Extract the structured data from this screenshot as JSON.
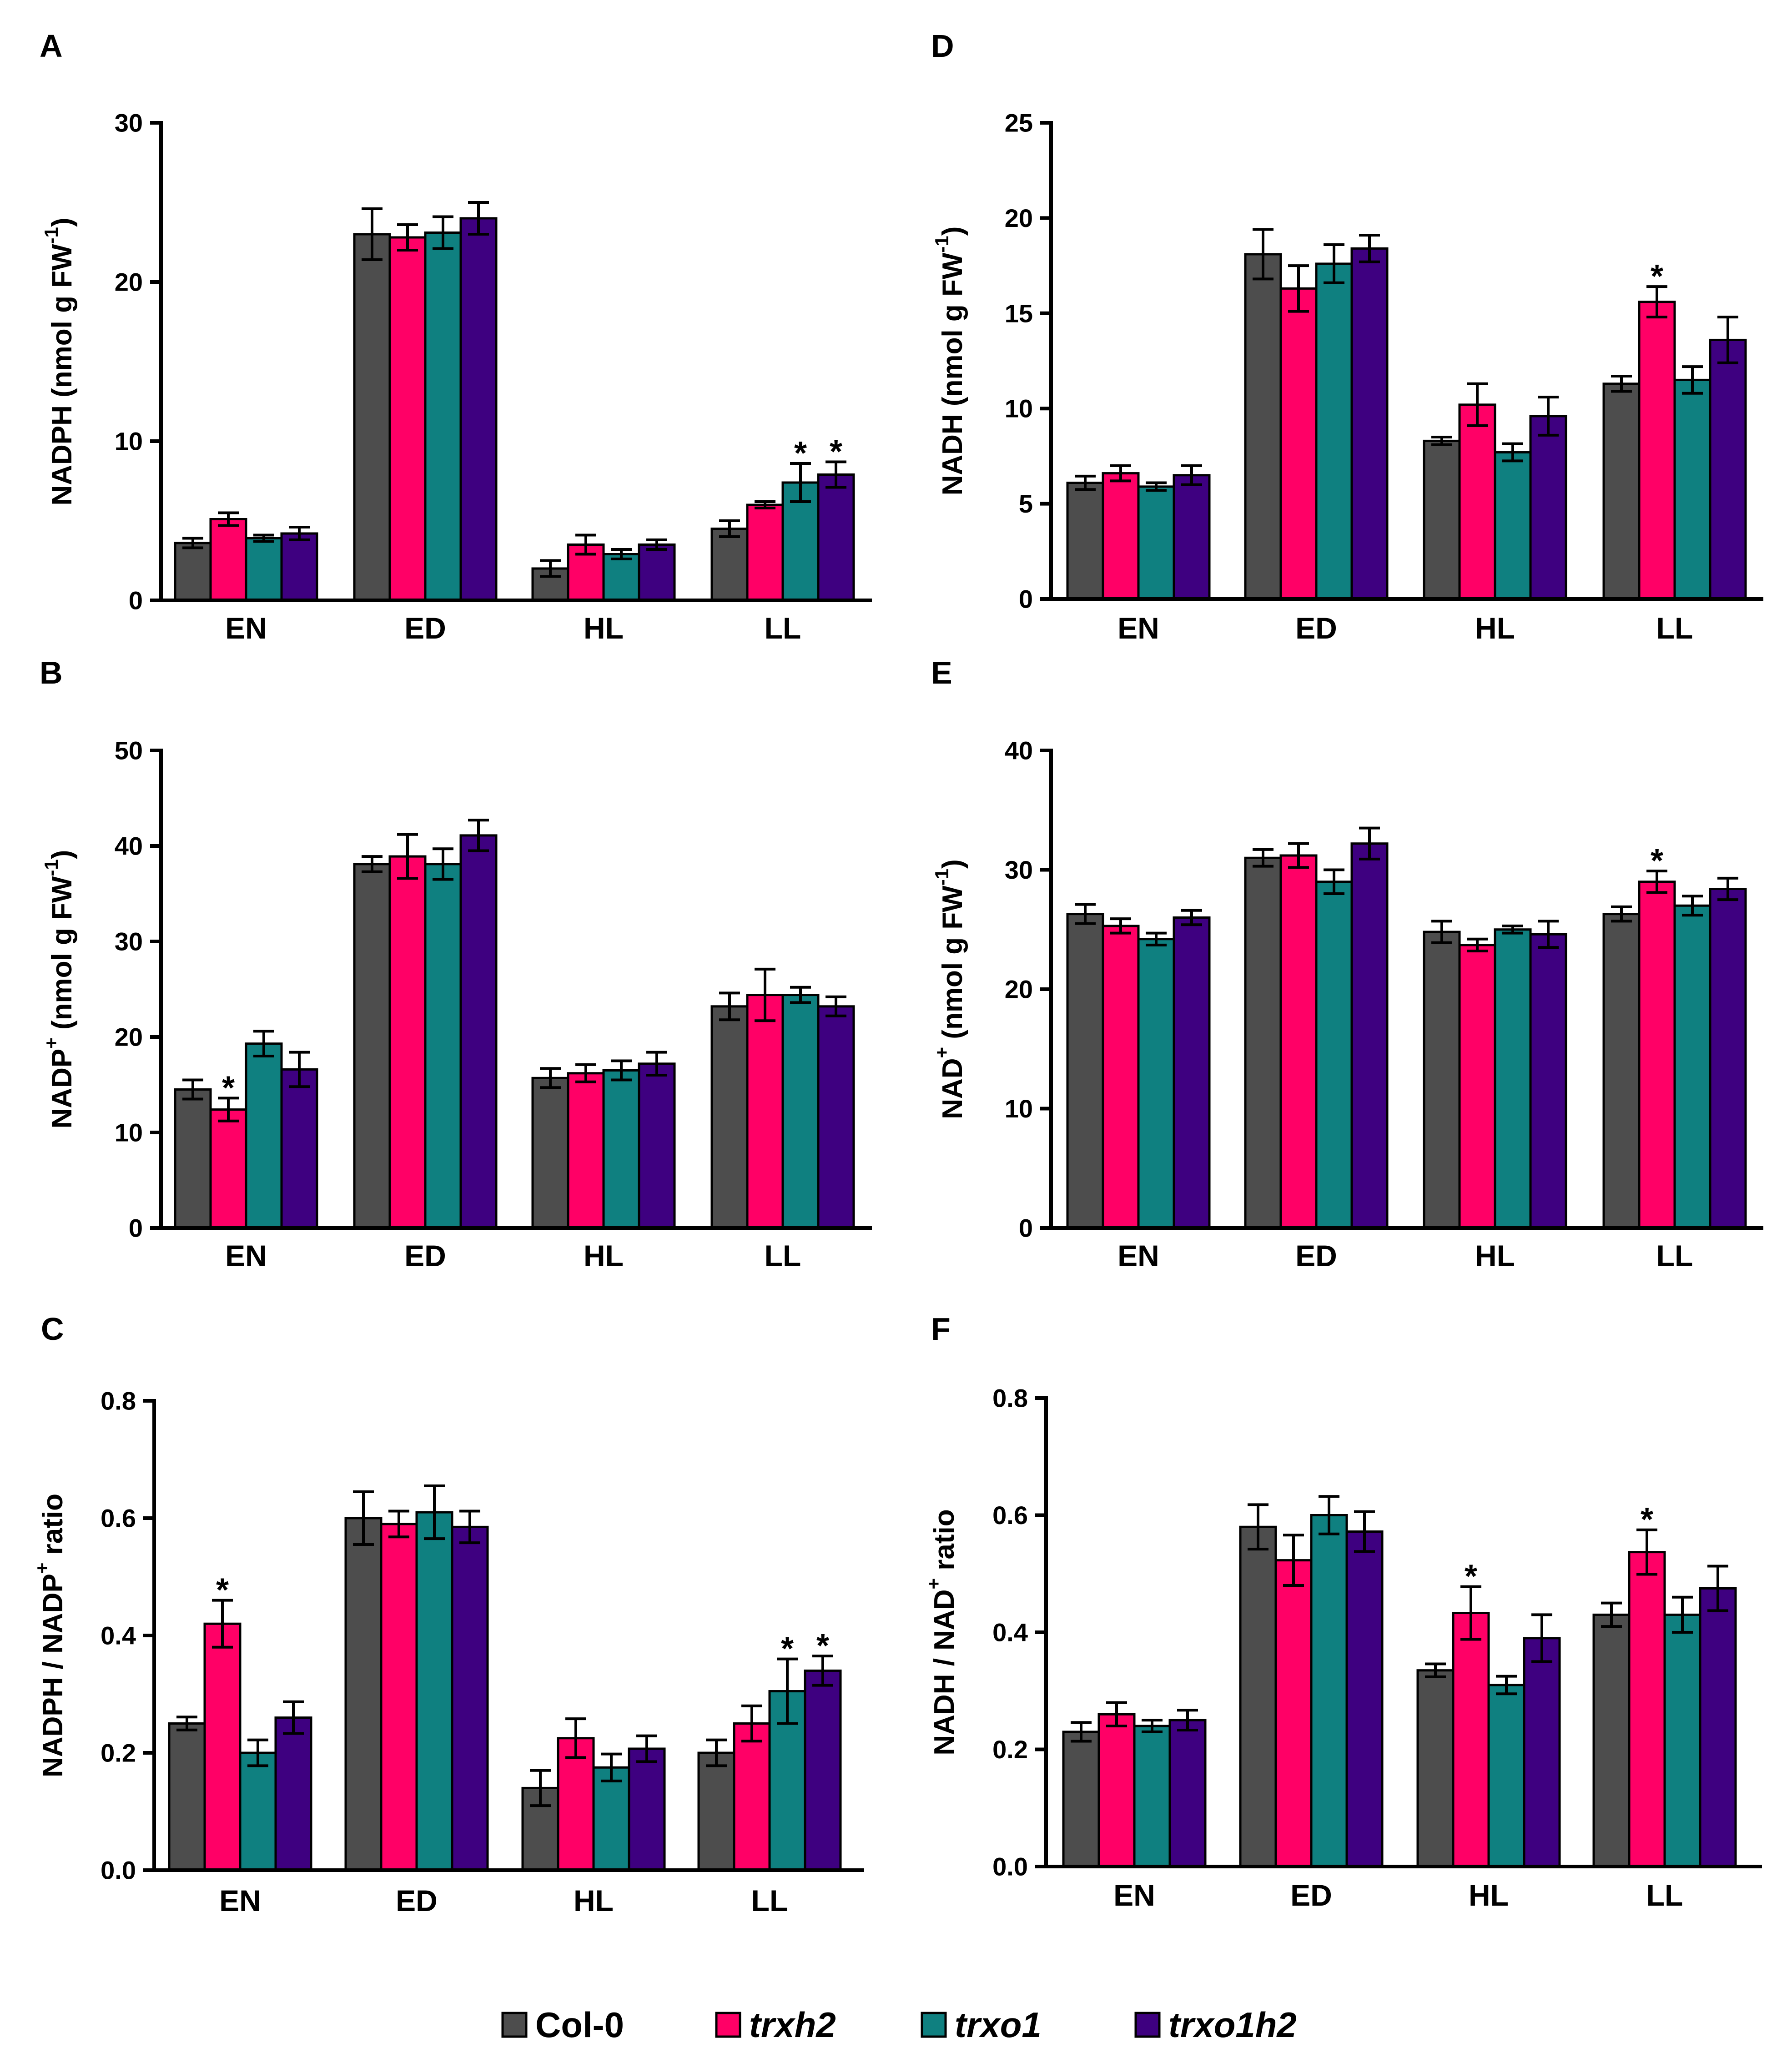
{
  "chart_data": {
    "type": "bar",
    "categories": [
      "EN",
      "ED",
      "HL",
      "LL"
    ],
    "series": [
      {
        "name": "Col-0",
        "color": "#4d4d4d",
        "italic": false
      },
      {
        "name": "trxh2",
        "color": "#ff0066",
        "italic": true
      },
      {
        "name": "trxo1",
        "color": "#0f8080",
        "italic": true
      },
      {
        "name": "trxo1h2",
        "color": "#3e0080",
        "italic": true
      }
    ],
    "significance_marker": "*",
    "panels": [
      {
        "label": "A",
        "ylabel": [
          {
            "text": "NADPH (nmol g FW"
          },
          {
            "text": "-1",
            "sup": true
          },
          {
            "text": ")"
          }
        ],
        "ylim": [
          0,
          30
        ],
        "yticks": [
          "0",
          "10",
          "20",
          "30"
        ],
        "values": [
          [
            3.6,
            23.0,
            2.0,
            4.5
          ],
          [
            5.1,
            22.8,
            3.5,
            6.0
          ],
          [
            3.9,
            23.1,
            2.9,
            7.4
          ],
          [
            4.2,
            24.0,
            3.5,
            7.9
          ]
        ],
        "errors": [
          [
            0.3,
            1.6,
            0.5,
            0.5
          ],
          [
            0.4,
            0.8,
            0.6,
            0.2
          ],
          [
            0.2,
            1.0,
            0.3,
            1.2
          ],
          [
            0.4,
            1.0,
            0.3,
            0.8
          ]
        ],
        "significant": [
          [
            false,
            false,
            false,
            false
          ],
          [
            false,
            false,
            false,
            false
          ],
          [
            false,
            false,
            false,
            true
          ],
          [
            false,
            false,
            false,
            true
          ]
        ]
      },
      {
        "label": "B",
        "ylabel": [
          {
            "text": "NADP"
          },
          {
            "text": "+",
            "sup": true
          },
          {
            "text": " (nmol g FW"
          },
          {
            "text": "-1",
            "sup": true
          },
          {
            "text": ")"
          }
        ],
        "ylim": [
          0,
          50
        ],
        "yticks": [
          "0",
          "10",
          "20",
          "30",
          "40",
          "50"
        ],
        "values": [
          [
            14.5,
            38.1,
            15.7,
            23.2
          ],
          [
            12.4,
            38.9,
            16.2,
            24.4
          ],
          [
            19.3,
            38.1,
            16.5,
            24.4
          ],
          [
            16.6,
            41.1,
            17.2,
            23.2
          ]
        ],
        "errors": [
          [
            1.0,
            0.8,
            1.0,
            1.4
          ],
          [
            1.2,
            2.3,
            0.9,
            2.7
          ],
          [
            1.3,
            1.6,
            1.0,
            0.8
          ],
          [
            1.8,
            1.6,
            1.2,
            1.0
          ]
        ],
        "significant": [
          [
            false,
            false,
            false,
            false
          ],
          [
            true,
            false,
            false,
            false
          ],
          [
            false,
            false,
            false,
            false
          ],
          [
            false,
            false,
            false,
            false
          ]
        ]
      },
      {
        "label": "C",
        "ylabel": [
          {
            "text": "NADPH / NADP"
          },
          {
            "text": "+",
            "sup": true
          },
          {
            "text": " ratio"
          }
        ],
        "ylim": [
          0,
          0.8
        ],
        "yticks": [
          "0.0",
          "0.2",
          "0.4",
          "0.6",
          "0.8"
        ],
        "values": [
          [
            0.25,
            0.6,
            0.14,
            0.2
          ],
          [
            0.42,
            0.59,
            0.225,
            0.25
          ],
          [
            0.2,
            0.61,
            0.175,
            0.305
          ],
          [
            0.26,
            0.585,
            0.207,
            0.34
          ]
        ],
        "errors": [
          [
            0.011,
            0.045,
            0.03,
            0.022
          ],
          [
            0.04,
            0.022,
            0.033,
            0.03
          ],
          [
            0.022,
            0.045,
            0.023,
            0.055
          ],
          [
            0.027,
            0.027,
            0.022,
            0.025
          ]
        ],
        "significant": [
          [
            false,
            false,
            false,
            false
          ],
          [
            true,
            false,
            false,
            false
          ],
          [
            false,
            false,
            false,
            true
          ],
          [
            false,
            false,
            false,
            true
          ]
        ]
      },
      {
        "label": "D",
        "ylabel": [
          {
            "text": "NADH (nmol g FW"
          },
          {
            "text": "-1",
            "sup": true
          },
          {
            "text": ")"
          }
        ],
        "ylim": [
          0,
          25
        ],
        "yticks": [
          "0",
          "5",
          "10",
          "15",
          "20",
          "25"
        ],
        "values": [
          [
            6.1,
            18.1,
            8.3,
            11.3
          ],
          [
            6.6,
            16.3,
            10.2,
            15.6
          ],
          [
            5.9,
            17.6,
            7.7,
            11.5
          ],
          [
            6.5,
            18.4,
            9.6,
            13.6
          ]
        ],
        "errors": [
          [
            0.35,
            1.3,
            0.2,
            0.4
          ],
          [
            0.4,
            1.2,
            1.1,
            0.8
          ],
          [
            0.2,
            1.0,
            0.45,
            0.7
          ],
          [
            0.5,
            0.7,
            1.0,
            1.2
          ]
        ],
        "significant": [
          [
            false,
            false,
            false,
            false
          ],
          [
            false,
            false,
            false,
            true
          ],
          [
            false,
            false,
            false,
            false
          ],
          [
            false,
            false,
            false,
            false
          ]
        ]
      },
      {
        "label": "E",
        "ylabel": [
          {
            "text": "NAD"
          },
          {
            "text": "+",
            "sup": true
          },
          {
            "text": " (nmol g FW"
          },
          {
            "text": "-1",
            "sup": true
          },
          {
            "text": ")"
          }
        ],
        "ylim": [
          0,
          40
        ],
        "yticks": [
          "0",
          "10",
          "20",
          "30",
          "40"
        ],
        "values": [
          [
            26.3,
            31.0,
            24.8,
            26.3
          ],
          [
            25.3,
            31.2,
            23.7,
            29.0
          ],
          [
            24.2,
            29.0,
            25.0,
            27.0
          ],
          [
            26.0,
            32.2,
            24.6,
            28.4
          ]
        ],
        "errors": [
          [
            0.8,
            0.7,
            0.9,
            0.6
          ],
          [
            0.6,
            1.0,
            0.5,
            0.9
          ],
          [
            0.5,
            1.0,
            0.3,
            0.8
          ],
          [
            0.6,
            1.3,
            1.1,
            0.9
          ]
        ],
        "significant": [
          [
            false,
            false,
            false,
            false
          ],
          [
            false,
            false,
            false,
            true
          ],
          [
            false,
            false,
            false,
            false
          ],
          [
            false,
            false,
            false,
            false
          ]
        ]
      },
      {
        "label": "F",
        "ylabel": [
          {
            "text": "NADH / NAD"
          },
          {
            "text": "+",
            "sup": true
          },
          {
            "text": " ratio"
          }
        ],
        "ylim": [
          0,
          0.8
        ],
        "yticks": [
          "0.0",
          "0.2",
          "0.4",
          "0.6",
          "0.8"
        ],
        "values": [
          [
            0.23,
            0.58,
            0.335,
            0.43
          ],
          [
            0.26,
            0.523,
            0.433,
            0.537
          ],
          [
            0.24,
            0.6,
            0.31,
            0.43
          ],
          [
            0.25,
            0.572,
            0.39,
            0.475
          ]
        ],
        "errors": [
          [
            0.016,
            0.038,
            0.011,
            0.02
          ],
          [
            0.02,
            0.043,
            0.045,
            0.038
          ],
          [
            0.01,
            0.032,
            0.015,
            0.03
          ],
          [
            0.017,
            0.034,
            0.04,
            0.038
          ]
        ],
        "significant": [
          [
            false,
            false,
            false,
            false
          ],
          [
            false,
            false,
            true,
            true
          ],
          [
            false,
            false,
            false,
            false
          ],
          [
            false,
            false,
            false,
            false
          ]
        ]
      }
    ]
  }
}
